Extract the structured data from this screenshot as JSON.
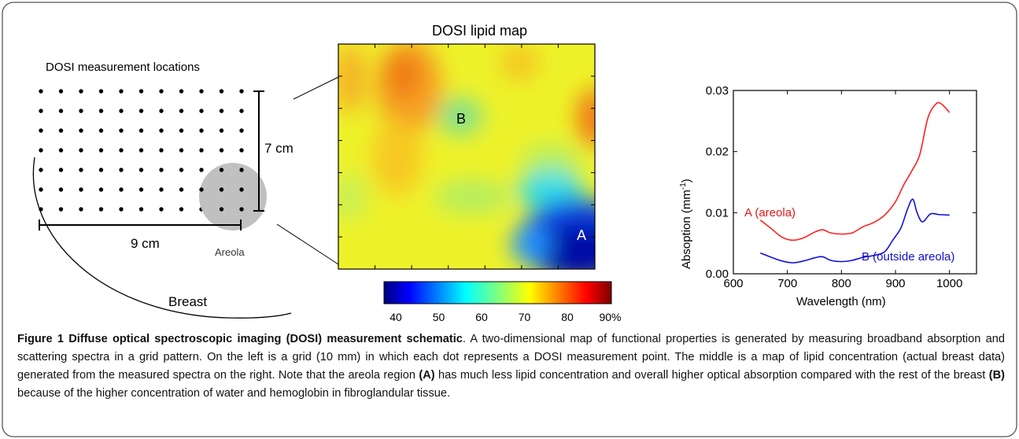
{
  "left": {
    "title": "DOSI measurement locations",
    "height_label": "7 cm",
    "width_label": "9 cm",
    "areola_label": "Areola",
    "breast_label": "Breast"
  },
  "map": {
    "title": "DOSI lipid map",
    "label_a": "A",
    "label_b": "B",
    "colorbar_ticks": [
      "40",
      "50",
      "60",
      "70",
      "80",
      "90%"
    ]
  },
  "chart_data": {
    "type": "line",
    "xlabel": "Wavelength (nm)",
    "ylabel_main": "Absoption (mm",
    "ylabel_sup": "-1",
    "ylabel_end": ")",
    "xlim": [
      600,
      1050
    ],
    "ylim": [
      0,
      0.03
    ],
    "x_ticks": [
      "600",
      "700",
      "800",
      "900",
      "1000"
    ],
    "x_tick_values": [
      600,
      700,
      800,
      900,
      1000
    ],
    "y_ticks": [
      "0.00",
      "0.01",
      "0.02",
      "0.03"
    ],
    "y_tick_values": [
      0,
      0.01,
      0.02,
      0.03
    ],
    "series": [
      {
        "name": "A (areola)",
        "color": "#ff2020",
        "x": [
          650,
          670,
          690,
          710,
          730,
          750,
          765,
          780,
          800,
          820,
          840,
          860,
          880,
          900,
          915,
          930,
          945,
          960,
          975,
          985,
          1000
        ],
        "y": [
          0.0088,
          0.0074,
          0.006,
          0.0055,
          0.0059,
          0.0068,
          0.0072,
          0.0067,
          0.0065,
          0.0067,
          0.0077,
          0.0084,
          0.0096,
          0.0118,
          0.0145,
          0.0168,
          0.0195,
          0.0255,
          0.0278,
          0.0278,
          0.0264
        ]
      },
      {
        "name": "B (outside areola)",
        "color": "#1010dd",
        "x": [
          650,
          670,
          690,
          710,
          730,
          750,
          765,
          780,
          800,
          820,
          840,
          860,
          880,
          895,
          910,
          922,
          932,
          940,
          950,
          965,
          980,
          1000
        ],
        "y": [
          0.0034,
          0.0027,
          0.0021,
          0.0018,
          0.0021,
          0.0026,
          0.0028,
          0.0022,
          0.002,
          0.0022,
          0.0027,
          0.003,
          0.0036,
          0.0055,
          0.0075,
          0.0105,
          0.0122,
          0.01,
          0.0085,
          0.0098,
          0.0097,
          0.0096
        ]
      }
    ]
  },
  "caption": {
    "title": "Figure 1 Diffuse optical spectroscopic imaging (DOSI) measurement schematic",
    "text_1": ". A two-dimensional map of functional properties is generated by measuring broadband absorption and scattering spectra in a grid pattern. On the left is a grid (10 mm) in which each dot represents a DOSI measurement point. The middle is a map of lipid concentration (actual breast data) generated from the measured spectra on the right. Note that the areola region ",
    "ref_a": "(A)",
    "text_2": " has much less lipid concentration and overall higher optical absorption compared with the rest of the breast ",
    "ref_b": "(B)",
    "text_3": " because of the higher concentration of water and hemoglobin in fibroglandular tissue."
  }
}
